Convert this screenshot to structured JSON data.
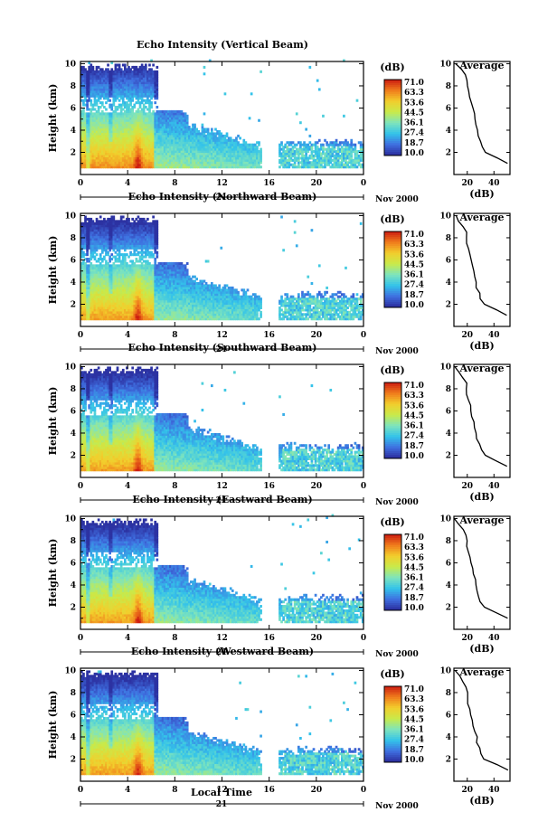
{
  "figure": {
    "panels": [
      {
        "title": "Echo Intensity (Vertical Beam)"
      },
      {
        "title": "Echo Intensity (Northward Beam)"
      },
      {
        "title": "Echo Intensity (Southward Beam)"
      },
      {
        "title": "Echo Intensity (Eastward Beam)"
      },
      {
        "title": "Echo Intensity (Westward Beam)"
      }
    ],
    "ylabel": "Height (km)",
    "xlabel_bottom": "Local Time",
    "date_number": "21",
    "month_year": "Nov 2000",
    "profile_title": "Average",
    "profile_xlabel": "(dB)",
    "colorbar_unit": "(dB)"
  },
  "chart_data": {
    "type": "heatmap",
    "x_range": [
      0,
      24
    ],
    "x_ticks": [
      "0",
      "4",
      "8",
      "12",
      "16",
      "20",
      "0"
    ],
    "y_range": [
      0,
      10.2
    ],
    "y_ticks": [
      "2",
      "4",
      "6",
      "8",
      "10"
    ],
    "colorbar": {
      "min": 10.0,
      "max": 71.0,
      "ticks": [
        "71.0",
        "63.3",
        "53.6",
        "44.5",
        "36.1",
        "27.4",
        "18.7",
        "10.0"
      ],
      "colormap": [
        "#2a2a9a",
        "#3f6fe0",
        "#33c3ea",
        "#7ee4bd",
        "#c8ea4a",
        "#f2ce2c",
        "#f07c1c",
        "#cc1a10"
      ]
    },
    "data_gap_hours": [
      15.3,
      16.8
    ],
    "profile": {
      "heights_km": [
        1.0,
        1.5,
        2.0,
        2.5,
        3.0,
        3.5,
        4.0,
        4.5,
        5.0,
        5.5,
        6.0,
        6.5,
        7.0,
        7.5,
        8.0,
        8.5,
        9.0,
        9.5,
        10.0
      ],
      "series": [
        {
          "x_ticks": [
            "20",
            "40"
          ],
          "x_range": [
            10,
            52
          ],
          "values": [
            50,
            43,
            34,
            31,
            30,
            28,
            28,
            27,
            26,
            25,
            24,
            23,
            22,
            21,
            20,
            20,
            18,
            15,
            12
          ]
        },
        {
          "x_ticks": [
            "20",
            "40"
          ],
          "x_range": [
            10,
            52
          ],
          "values": [
            50,
            42,
            33,
            30,
            29,
            27,
            27,
            26,
            25,
            24,
            23,
            22,
            21,
            20,
            20,
            19,
            17,
            14,
            11
          ]
        },
        {
          "x_ticks": [
            "20",
            "40"
          ],
          "x_range": [
            10,
            52
          ],
          "values": [
            50,
            42,
            33,
            30,
            29,
            27,
            27,
            26,
            25,
            24,
            23,
            22,
            21,
            20,
            20,
            19,
            17,
            14,
            11
          ]
        },
        {
          "x_ticks": [
            "20",
            "40"
          ],
          "x_range": [
            10,
            52
          ],
          "values": [
            50,
            42,
            33,
            30,
            29,
            27,
            27,
            26,
            25,
            24,
            23,
            22,
            21,
            20,
            20,
            19,
            17,
            14,
            11
          ]
        },
        {
          "x_ticks": [
            "20",
            "40"
          ],
          "x_range": [
            10,
            52
          ],
          "values": [
            50,
            42,
            33,
            30,
            29,
            27,
            27,
            26,
            25,
            24,
            23,
            22,
            21,
            20,
            20,
            19,
            17,
            14,
            11
          ]
        }
      ]
    }
  }
}
